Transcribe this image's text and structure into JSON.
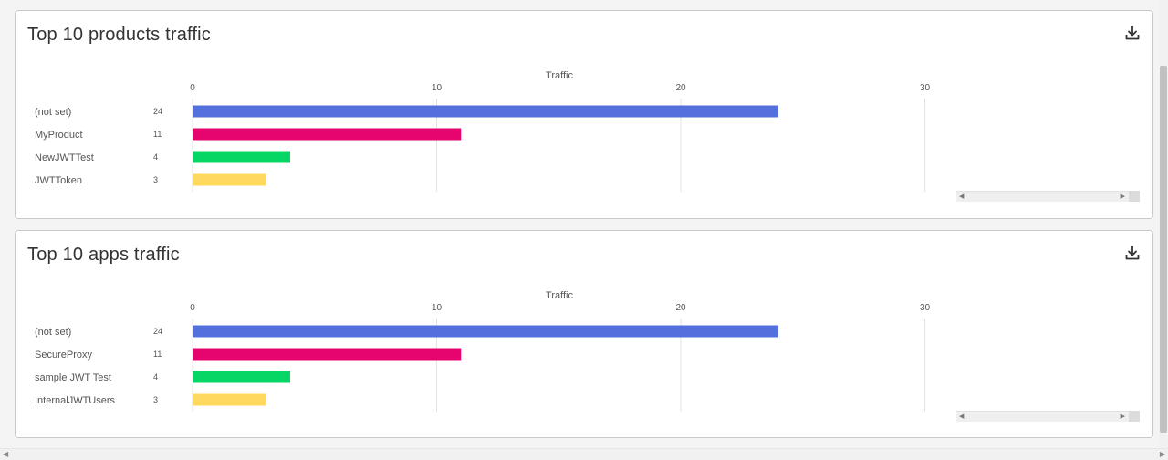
{
  "colors": {
    "series": [
      "#5470dc",
      "#e6056e",
      "#06d664",
      "#ffd95e"
    ],
    "grid": "#e3e3e3",
    "text": "#555555"
  },
  "products_panel": {
    "title": "Top 10 products traffic",
    "download_icon": "download-icon"
  },
  "apps_panel": {
    "title": "Top 10 apps traffic",
    "download_icon": "download-icon"
  },
  "chart_data": [
    {
      "type": "bar",
      "orientation": "horizontal",
      "xlabel": "Traffic",
      "xlim": [
        0,
        30
      ],
      "xticks": [
        0,
        10,
        20,
        30
      ],
      "categories": [
        "(not set)",
        "MyProduct",
        "NewJWTTest",
        "JWTToken"
      ],
      "values": [
        24,
        11,
        4,
        3
      ],
      "grid": true
    },
    {
      "type": "bar",
      "orientation": "horizontal",
      "xlabel": "Traffic",
      "xlim": [
        0,
        30
      ],
      "xticks": [
        0,
        10,
        20,
        30
      ],
      "categories": [
        "(not set)",
        "SecureProxy",
        "sample JWT Test",
        "InternalJWTUsers"
      ],
      "values": [
        24,
        11,
        4,
        3
      ],
      "grid": true
    }
  ]
}
